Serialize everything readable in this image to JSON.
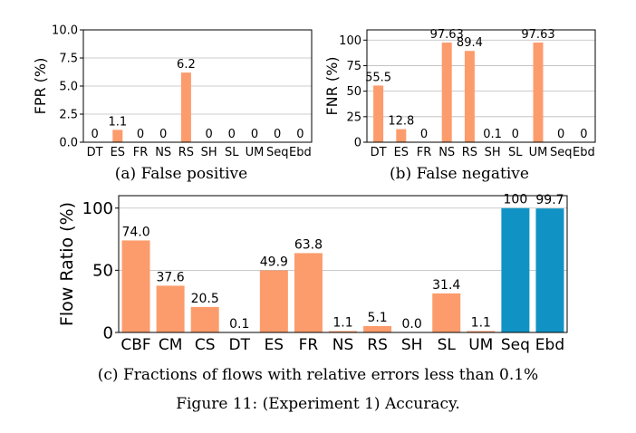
{
  "captions": {
    "a": "(a) False positive",
    "b": "(b) False negative",
    "c": "(c) Fractions of flows with relative errors less than 0.1%",
    "figure": "Figure 11: (Experiment 1) Accuracy."
  },
  "colors": {
    "orange": "#FC9C6C",
    "blue": "#1093C4",
    "grid": "#BBBBBB"
  },
  "chart_data": [
    {
      "type": "bar",
      "ylabel": "FPR (%)",
      "ylim": [
        0,
        10
      ],
      "yticks": [
        "0.0",
        "2.5",
        "5.0",
        "7.5",
        "10.0"
      ],
      "grid": "horizontal",
      "categories": [
        "DT",
        "ES",
        "FR",
        "NS",
        "RS",
        "SH",
        "SL",
        "UM",
        "Seq",
        "Ebd"
      ],
      "values": [
        0,
        1.1,
        0,
        0,
        6.2,
        0,
        0,
        0,
        0,
        0
      ],
      "labels": [
        "0",
        "1.1",
        "0",
        "0",
        "6.2",
        "0",
        "0",
        "0",
        "0",
        "0"
      ]
    },
    {
      "type": "bar",
      "ylabel": "FNR (%)",
      "ylim": [
        0,
        110
      ],
      "yticks": [
        "0",
        "25",
        "50",
        "75",
        "100"
      ],
      "grid": "horizontal",
      "categories": [
        "DT",
        "ES",
        "FR",
        "NS",
        "RS",
        "SH",
        "SL",
        "UM",
        "Seq",
        "Ebd"
      ],
      "values": [
        55.5,
        12.8,
        0,
        97.63,
        89.4,
        0.1,
        0,
        97.63,
        0,
        0
      ],
      "labels": [
        "55.5",
        "12.8",
        "0",
        "97.63",
        "89.4",
        "0.1",
        "0",
        "97.63",
        "0",
        "0"
      ]
    },
    {
      "type": "bar",
      "ylabel": "Flow Ratio (%)",
      "ylim": [
        0,
        110
      ],
      "yticks": [
        "0",
        "50",
        "100"
      ],
      "grid": "horizontal",
      "categories": [
        "CBF",
        "CM",
        "CS",
        "DT",
        "ES",
        "FR",
        "NS",
        "RS",
        "SH",
        "SL",
        "UM",
        "Seq",
        "Ebd"
      ],
      "values": [
        74.0,
        37.6,
        20.5,
        0.1,
        49.9,
        63.8,
        1.1,
        5.1,
        0.0,
        31.4,
        1.1,
        100,
        99.7
      ],
      "labels": [
        "74.0",
        "37.6",
        "20.5",
        "0.1",
        "49.9",
        "63.8",
        "1.1",
        "5.1",
        "0.0",
        "31.4",
        "1.1",
        "100",
        "99.7"
      ],
      "bar_colors": [
        "orange",
        "orange",
        "orange",
        "orange",
        "orange",
        "orange",
        "orange",
        "orange",
        "orange",
        "orange",
        "orange",
        "blue",
        "blue"
      ]
    }
  ]
}
